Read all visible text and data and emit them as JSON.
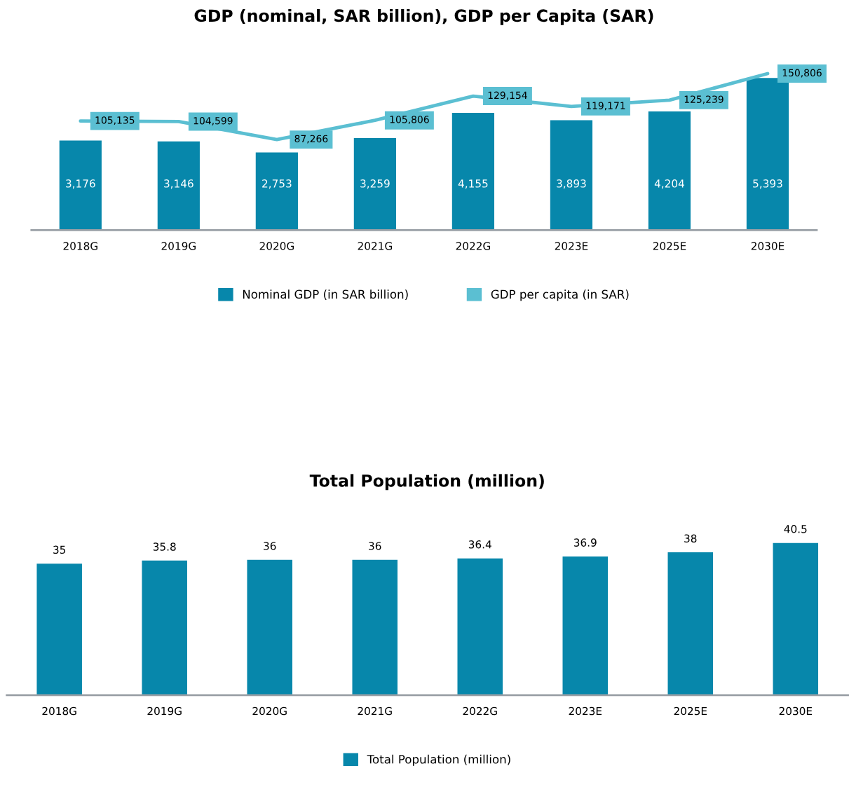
{
  "chart_data": [
    {
      "type": "bar",
      "title": "GDP (nominal, SAR billion), GDP per Capita (SAR)",
      "categories": [
        "2018G",
        "2019G",
        "2020G",
        "2021G",
        "2022G",
        "2023E",
        "2025E",
        "2030E"
      ],
      "series": [
        {
          "name": "Nominal GDP (in SAR billion)",
          "color": "#0787ab",
          "values": [
            3176,
            3146,
            2753,
            3259,
            4155,
            3893,
            4204,
            5393
          ],
          "value_labels": [
            "3,176",
            "3,146",
            "2,753",
            "3,259",
            "4,155",
            "3,893",
            "4,204",
            "5,393"
          ]
        },
        {
          "name": "GDP per capita (in SAR)",
          "type": "line",
          "axis": "y2",
          "color": "#5bbfd2",
          "values": [
            105135,
            104599,
            87266,
            105806,
            129154,
            119171,
            125239,
            150806
          ],
          "value_labels": [
            "105,135",
            "104,599",
            "87,266",
            "105,806",
            "129,154",
            "119,171",
            "125,239",
            "150,806"
          ]
        }
      ],
      "legend": "bottom",
      "tick_labels": "x",
      "grid": false
    },
    {
      "type": "bar",
      "title": "Total Population (million)",
      "categories": [
        "2018G",
        "2019G",
        "2020G",
        "2021G",
        "2022G",
        "2023E",
        "2025E",
        "2030E"
      ],
      "series": [
        {
          "name": "Total Population (million)",
          "color": "#0787ab",
          "values": [
            35,
            35.8,
            36,
            36,
            36.4,
            36.9,
            38,
            40.5
          ]
        }
      ],
      "data_labels": true,
      "legend": "bottom",
      "tick_labels": "x",
      "grid": false
    }
  ]
}
